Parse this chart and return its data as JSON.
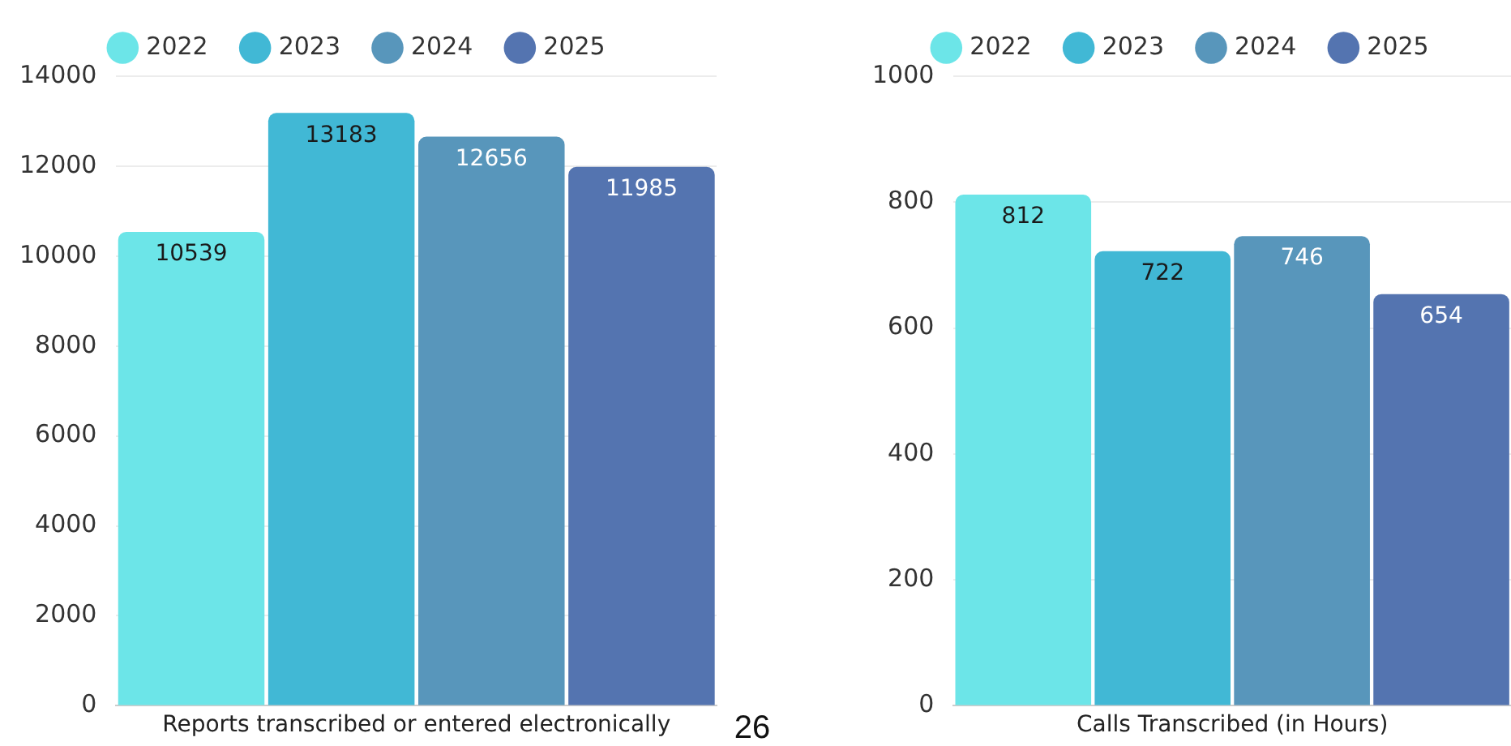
{
  "chart_data": [
    {
      "type": "bar",
      "categories": [
        "Reports transcribed or entered electronically"
      ],
      "series": [
        {
          "name": "2022",
          "color": "#6ce5e8",
          "values": [
            10539
          ]
        },
        {
          "name": "2023",
          "color": "#41b8d5",
          "values": [
            13183
          ]
        },
        {
          "name": "2024",
          "color": "#5896bb",
          "values": [
            12656
          ]
        },
        {
          "name": "2025",
          "color": "#5474b0",
          "values": [
            11985
          ]
        }
      ],
      "ylim": [
        0,
        14000
      ],
      "yticks": [
        0,
        2000,
        4000,
        6000,
        8000,
        10000,
        12000,
        14000
      ],
      "grid": "y",
      "legend": "top",
      "data_labels": true,
      "annotations": [
        "26"
      ]
    },
    {
      "type": "bar",
      "categories": [
        "Calls Transcribed (in Hours)"
      ],
      "series": [
        {
          "name": "2022",
          "color": "#6ce5e8",
          "values": [
            812
          ]
        },
        {
          "name": "2023",
          "color": "#41b8d5",
          "values": [
            722
          ]
        },
        {
          "name": "2024",
          "color": "#5896bb",
          "values": [
            746
          ]
        },
        {
          "name": "2025",
          "color": "#5474b0",
          "values": [
            654
          ]
        }
      ],
      "ylim": [
        0,
        1000
      ],
      "yticks": [
        0,
        200,
        400,
        600,
        800,
        1000
      ],
      "grid": "y",
      "legend": "top",
      "data_labels": true
    }
  ]
}
